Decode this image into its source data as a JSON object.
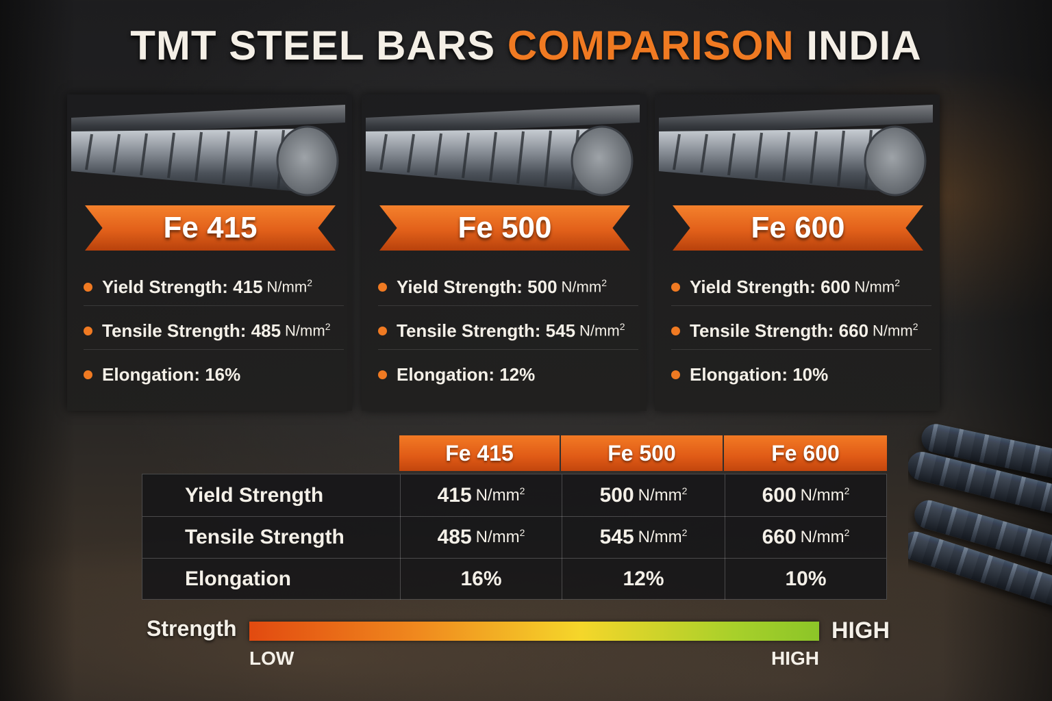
{
  "title": {
    "part1": "TMT STEEL BARS ",
    "part2": "COMPARISON",
    "part3": " INDIA"
  },
  "colors": {
    "accent": "#f07a22",
    "text": "#f4f0e8"
  },
  "bar_icon": "rebar-image",
  "grades": [
    {
      "name": "Fe 415",
      "yield_label": "Yield Strength: 415",
      "tensile_label": "Tensile Strength: 485",
      "elongation_label": "Elongation: 16%"
    },
    {
      "name": "Fe 500",
      "yield_label": "Yield Strength: 500",
      "tensile_label": "Tensile Strength: 545",
      "elongation_label": "Elongation: 12%"
    },
    {
      "name": "Fe 600",
      "yield_label": "Yield Strength: 600",
      "tensile_label": "Tensile Strength: 660",
      "elongation_label": "Elongation: 10%"
    }
  ],
  "unit": {
    "base": "N/mm",
    "exp": "2"
  },
  "table": {
    "headers": [
      "Fe 415",
      "Fe 500",
      "Fe 600"
    ],
    "rows": [
      {
        "label": "Yield Strength",
        "values": [
          "415",
          "500",
          "600"
        ]
      },
      {
        "label": "Tensile Strength",
        "values": [
          "485",
          "545",
          "660"
        ]
      },
      {
        "label": "Elongation",
        "values": [
          "16%",
          "12%",
          "10%"
        ]
      }
    ]
  },
  "scale": {
    "label": "Strength",
    "low": "LOW",
    "high": "HIGH",
    "high_right": "HIGH"
  }
}
